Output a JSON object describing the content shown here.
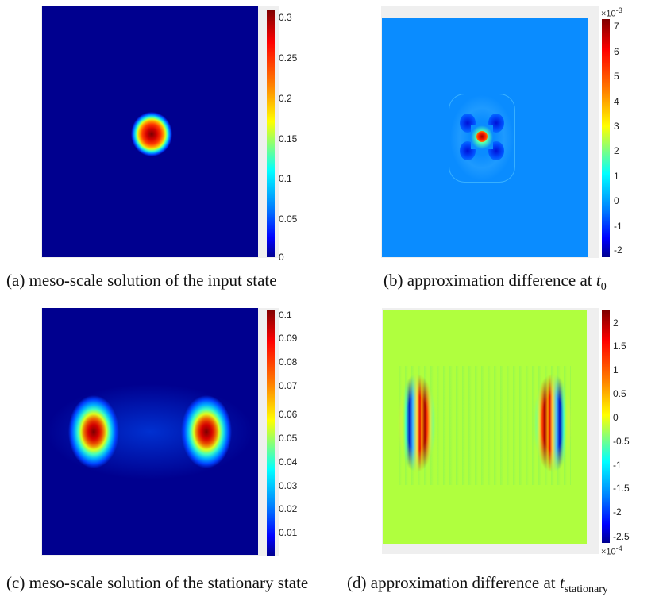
{
  "colors": {
    "field_dark_blue": "#00008f",
    "field_light_blue": "#0a8cff",
    "field_lime": "#b0ff3e",
    "frame_gray": "#efefef"
  },
  "figures": [
    {
      "id": "a",
      "caption_prefix": "(a)",
      "caption_text": "meso-scale solution of the input state",
      "colorbar": {
        "ticks": [
          "0.3",
          "0.25",
          "0.2",
          "0.15",
          "0.1",
          "0.05",
          "0"
        ],
        "exponent": ""
      }
    },
    {
      "id": "b",
      "caption_prefix": "(b)",
      "caption_text": "approximation difference at",
      "caption_math": "t",
      "caption_sub": "0",
      "colorbar": {
        "ticks": [
          "7",
          "6",
          "5",
          "4",
          "3",
          "2",
          "1",
          "0",
          "-1",
          "-2"
        ],
        "exponent": "×10-3"
      }
    },
    {
      "id": "c",
      "caption_prefix": "(c)",
      "caption_text": "meso-scale solution of the stationary state",
      "colorbar": {
        "ticks": [
          "0.1",
          "0.09",
          "0.08",
          "0.07",
          "0.06",
          "0.05",
          "0.04",
          "0.03",
          "0.02",
          "0.01"
        ],
        "exponent": ""
      }
    },
    {
      "id": "d",
      "caption_prefix": "(d)",
      "caption_text": "approximation difference at",
      "caption_math": "t",
      "caption_sub": "stationary",
      "colorbar": {
        "ticks": [
          "2",
          "1.5",
          "1",
          "0.5",
          "0",
          "-0.5",
          "-1",
          "-1.5",
          "-2",
          "-2.5"
        ],
        "exponent": "×10-4"
      }
    }
  ]
}
